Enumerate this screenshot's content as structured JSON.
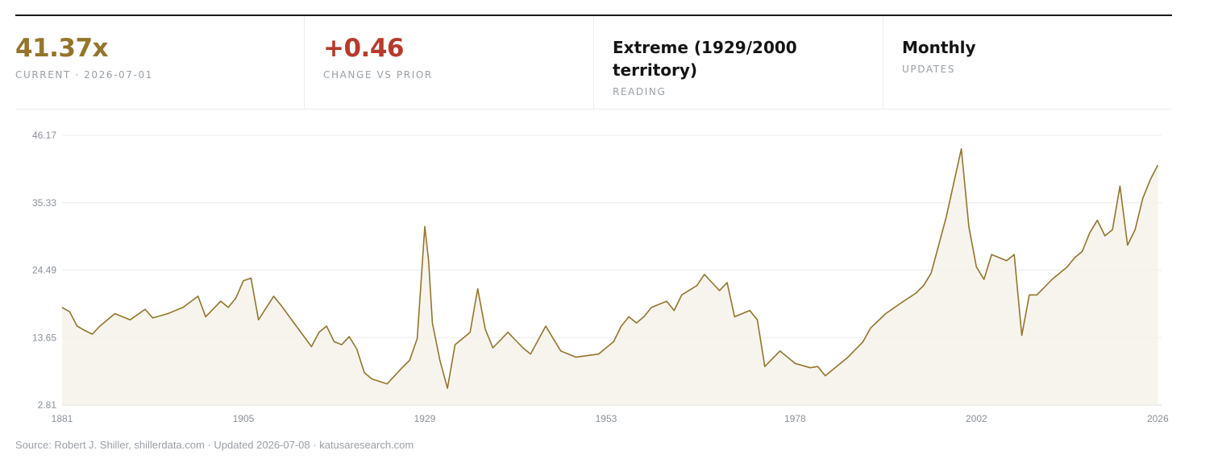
{
  "stats": [
    {
      "value": "41.37x",
      "label": "CURRENT · 2026-07-01",
      "color": "#94752b"
    },
    {
      "value": "+0.46",
      "label": "CHANGE VS PRIOR",
      "color": "#b83a2c"
    },
    {
      "value": "Extreme (1929/2000 territory)",
      "label": "READING"
    },
    {
      "value": "Monthly",
      "label": "UPDATES"
    }
  ],
  "source": "Source: Robert J. Shiller, shillerdata.com · Updated 2026-07-08 · katusaresearch.com",
  "chart_data": {
    "type": "area",
    "line_color": "#94752b",
    "fill_color": "#f5f1e8",
    "grid": true,
    "ylim": [
      2.81,
      46.17
    ],
    "xlim": [
      1881,
      2026.5
    ],
    "y_ticks": [
      "2.81",
      "13.65",
      "24.49",
      "35.33",
      "46.17"
    ],
    "x_ticks": [
      "1881",
      "1905",
      "1929",
      "1953",
      "1978",
      "2002",
      "2026"
    ],
    "x": [
      1881,
      1882,
      1883,
      1884,
      1885,
      1886,
      1888,
      1890,
      1892,
      1893,
      1895,
      1897,
      1899,
      1900,
      1902,
      1903,
      1904,
      1905,
      1906,
      1907,
      1909,
      1910,
      1912,
      1914,
      1915,
      1916,
      1917,
      1918,
      1919,
      1920,
      1921,
      1922,
      1924,
      1926,
      1927,
      1928,
      1929,
      1929.5,
      1930,
      1931,
      1932,
      1933,
      1935,
      1936,
      1937,
      1938,
      1940,
      1942,
      1943,
      1945,
      1946,
      1947,
      1949,
      1952,
      1954,
      1955,
      1956,
      1957,
      1958,
      1959,
      1961,
      1962,
      1963,
      1965,
      1966,
      1968,
      1969,
      1970,
      1972,
      1973,
      1974,
      1976,
      1978,
      1980,
      1981,
      1982,
      1984,
      1985,
      1987,
      1988,
      1990,
      1992,
      1994,
      1995,
      1996,
      1997,
      1998,
      1999,
      2000,
      2001,
      2002,
      2003,
      2004,
      2006,
      2007,
      2008,
      2009,
      2010,
      2012,
      2014,
      2015,
      2016,
      2017,
      2018,
      2019,
      2020,
      2021,
      2022,
      2023,
      2024,
      2025,
      2026
    ],
    "y": [
      18.5,
      17.8,
      15.5,
      14.8,
      14.2,
      15.5,
      17.5,
      16.5,
      18.2,
      16.8,
      17.5,
      18.5,
      20.3,
      17.0,
      19.5,
      18.5,
      20.0,
      22.8,
      23.2,
      16.5,
      20.3,
      18.8,
      15.5,
      12.2,
      14.5,
      15.5,
      13.0,
      12.5,
      13.8,
      11.8,
      8.0,
      7.0,
      6.2,
      8.8,
      10.0,
      13.5,
      31.5,
      26.0,
      16.0,
      10.0,
      5.5,
      12.5,
      14.5,
      21.5,
      15.0,
      12.0,
      14.5,
      12.0,
      11.0,
      15.5,
      13.5,
      11.5,
      10.5,
      11.0,
      13.0,
      15.5,
      17.0,
      16.0,
      17.0,
      18.5,
      19.5,
      18.0,
      20.5,
      22.0,
      23.8,
      21.2,
      22.5,
      17.0,
      18.0,
      16.5,
      9.0,
      11.5,
      9.5,
      8.8,
      9.0,
      7.5,
      9.5,
      10.5,
      13.0,
      15.2,
      17.5,
      19.2,
      20.8,
      22.0,
      24.0,
      28.5,
      33.0,
      38.5,
      44.0,
      31.5,
      25.0,
      23.0,
      27.0,
      26.0,
      27.0,
      14.0,
      20.5,
      20.5,
      23.0,
      25.0,
      26.5,
      27.5,
      30.5,
      32.5,
      30.0,
      31.0,
      38.0,
      28.5,
      31.0,
      36.0,
      39.0,
      41.37
    ]
  }
}
